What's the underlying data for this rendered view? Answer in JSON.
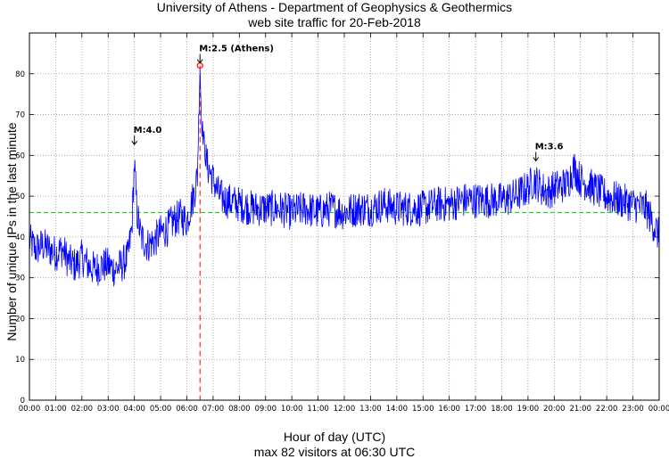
{
  "chart_data": {
    "type": "line",
    "title": "University of Athens - Department of Geophysics & Geothermics",
    "subtitle": "web site traffic for 20-Feb-2018",
    "xlabel": "Hour of day (UTC)",
    "footer": "max 82 visitors at 06:30 UTC",
    "ylabel": "Number of unique IPs in the last minute",
    "xlim": [
      0,
      24
    ],
    "ylim": [
      0,
      90
    ],
    "grid": true,
    "x_ticks": [
      0,
      1,
      2,
      3,
      4,
      5,
      6,
      7,
      8,
      9,
      10,
      11,
      12,
      13,
      14,
      15,
      16,
      17,
      18,
      19,
      20,
      21,
      22,
      23,
      24
    ],
    "x_tick_labels": [
      "00:00",
      "01:00",
      "02:00",
      "03:00",
      "04:00",
      "05:00",
      "06:00",
      "07:00",
      "08:00",
      "09:00",
      "10:00",
      "11:00",
      "12:00",
      "13:00",
      "14:00",
      "15:00",
      "16:00",
      "17:00",
      "18:00",
      "19:00",
      "20:00",
      "21:00",
      "22:00",
      "23:00",
      "00:00"
    ],
    "y_ticks": [
      0,
      10,
      20,
      30,
      40,
      50,
      60,
      70,
      80
    ],
    "average_line": {
      "value": 46,
      "color": "#00cc00",
      "style": "dashed"
    },
    "max_marker": {
      "x": 6.5,
      "value": 82,
      "color": "#ff0000"
    },
    "series": [
      {
        "color": "#0000ff",
        "x": [
          0,
          0.25,
          0.5,
          0.75,
          1.0,
          1.25,
          1.5,
          1.75,
          2.0,
          2.25,
          2.5,
          2.75,
          3.0,
          3.25,
          3.5,
          3.75,
          3.9,
          4.0,
          4.1,
          4.25,
          4.5,
          4.75,
          5.0,
          5.25,
          5.5,
          5.75,
          6.0,
          6.25,
          6.4,
          6.5,
          6.55,
          6.6,
          6.75,
          7.0,
          7.25,
          7.5,
          8.0,
          8.5,
          9.0,
          9.5,
          10.0,
          10.5,
          11.0,
          11.5,
          12.0,
          12.5,
          13.0,
          13.5,
          14.0,
          14.5,
          15.0,
          15.5,
          16.0,
          16.5,
          17.0,
          17.5,
          18.0,
          18.5,
          19.0,
          19.25,
          19.5,
          19.75,
          20.0,
          20.5,
          20.75,
          21.0,
          21.5,
          22.0,
          22.5,
          23.0,
          23.5,
          24.0
        ],
        "y": [
          39,
          37,
          38,
          37,
          36,
          37,
          34,
          33,
          35,
          33,
          32,
          33,
          33,
          32,
          33,
          35,
          42,
          58,
          46,
          40,
          38,
          39,
          41,
          42,
          44,
          45,
          44,
          50,
          55,
          82,
          70,
          66,
          58,
          54,
          50,
          49,
          48,
          47,
          47,
          47,
          46,
          47,
          46,
          47,
          46,
          47,
          47,
          48,
          47,
          47,
          47,
          48,
          48,
          49,
          49,
          49,
          49,
          50,
          52,
          54,
          52,
          51,
          52,
          53,
          57,
          54,
          52,
          50,
          49,
          48,
          47,
          40
        ]
      }
    ],
    "annotations": [
      {
        "text": "M:4.0",
        "x": 4.0,
        "value": 62
      },
      {
        "text": "M:2.5 (Athens)",
        "x": 6.5,
        "value": 82
      },
      {
        "text": "M:3.6",
        "x": 19.3,
        "value": 58
      }
    ]
  }
}
